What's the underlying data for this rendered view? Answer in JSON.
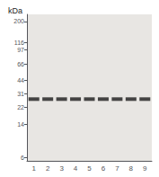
{
  "chart_data": {
    "type": "scatter",
    "title": "kDa",
    "categories": [
      "1",
      "2",
      "3",
      "4",
      "5",
      "6",
      "7",
      "8",
      "9"
    ],
    "values": [
      27,
      27,
      27,
      27,
      27,
      27,
      27,
      27,
      27
    ],
    "color": "#1a1a1a",
    "marker": "rect",
    "log": "y",
    "ylim": [
      5.5,
      240
    ],
    "yticks": [
      200,
      116,
      97,
      66,
      44,
      31,
      22,
      14,
      6
    ],
    "grid": false
  }
}
